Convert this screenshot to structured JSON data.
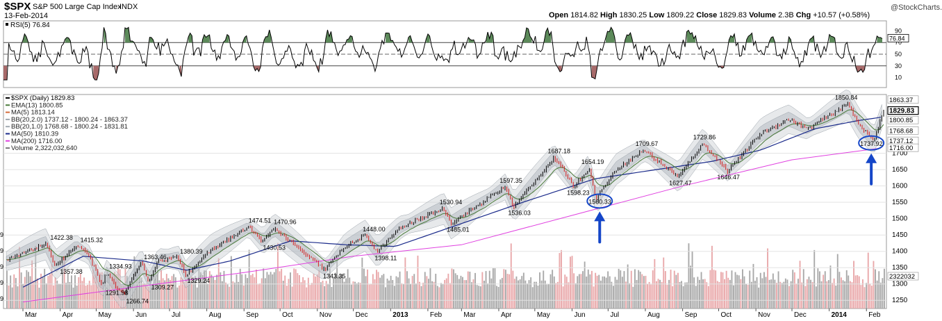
{
  "header": {
    "symbol": "$SPX",
    "name": "S&P 500 Large Cap Index",
    "exchange": "INDX",
    "date": "13-Feb-2014",
    "open_label": "Open",
    "open": "1814.82",
    "high_label": "High",
    "high": "1830.25",
    "low_label": "Low",
    "low": "1809.22",
    "close_label": "Close",
    "close": "1829.83",
    "volume_label": "Volume",
    "volume": "2.3B",
    "chg_label": "Chg",
    "chg": "+10.57 (+0.58%)",
    "watermark": "@StockCharts.com",
    "arrow_glyph": "▾"
  },
  "colors": {
    "price_up": "#000000",
    "price_down": "#d42020",
    "ema13": "#4a7a3a",
    "ma50": "#1a2a8a",
    "ma200": "#e040e0",
    "bb_fill": "#b8bfc6",
    "volume_grey": "#a9a9a9",
    "volume_red": "#e9a8aa",
    "rsi_fill_high": "#5c8a5a",
    "rsi_fill_low": "#a86a6a",
    "annotation": "#1546c8"
  },
  "chart_data": [
    {
      "type": "line",
      "title": "RSI(5) 76.84",
      "legend_label": "RSI(5)",
      "legend_value": "76.84",
      "ylim": [
        0,
        100
      ],
      "ticks": [
        {
          "v": 90,
          "label": "90"
        },
        {
          "v": 70,
          "label": "70"
        },
        {
          "v": 50,
          "label": "50"
        },
        {
          "v": 30,
          "label": "30"
        },
        {
          "v": 10,
          "label": "10"
        }
      ],
      "overbought": 70,
      "oversold": 30,
      "current_label": "76.84"
    },
    {
      "type": "line",
      "title": "$SPX (Daily) 1829.83",
      "ylim": [
        1225,
        1880
      ],
      "x_start": "2012-03-01",
      "x_end": "2014-02-13",
      "legend": [
        {
          "label": "$SPX (Daily) 1829.83",
          "color": "#000000"
        },
        {
          "label": "EMA(13) 1800.85",
          "color": "#4a7a3a"
        },
        {
          "label": "MA(5) 1813.14",
          "color": "#d46a3a"
        },
        {
          "label": "BB(20,2.0) 1737.12 - 1800.24 - 1863.37",
          "color": "#a0a8b0"
        },
        {
          "label": "BB(20,1.0) 1768.68 - 1800.24 - 1831.81",
          "color": "#a0a8b0"
        },
        {
          "label": "MA(50) 1810.39",
          "color": "#1a2a8a"
        },
        {
          "label": "MA(200) 1716.00",
          "color": "#e040e0"
        },
        {
          "label": "Volume 2,322,032,640",
          "color": "#777777"
        }
      ],
      "price_points": [
        {
          "date": "2012-03-01",
          "value": 1370
        },
        {
          "date": "2012-03-15",
          "value": 1395
        },
        {
          "date": "2012-04-02",
          "value": 1422.38
        },
        {
          "date": "2012-04-10",
          "value": 1357.38
        },
        {
          "date": "2012-04-27",
          "value": 1415.32
        },
        {
          "date": "2012-05-07",
          "value": 1390
        },
        {
          "date": "2012-05-18",
          "value": 1291.98
        },
        {
          "date": "2012-05-21",
          "value": 1334.93
        },
        {
          "date": "2012-06-04",
          "value": 1266.74
        },
        {
          "date": "2012-06-19",
          "value": 1363.46
        },
        {
          "date": "2012-06-25",
          "value": 1309.27
        },
        {
          "date": "2012-07-03",
          "value": 1374
        },
        {
          "date": "2012-07-19",
          "value": 1380.39
        },
        {
          "date": "2012-07-25",
          "value": 1329.24
        },
        {
          "date": "2012-08-15",
          "value": 1405
        },
        {
          "date": "2012-09-14",
          "value": 1474.51
        },
        {
          "date": "2012-09-26",
          "value": 1430.53
        },
        {
          "date": "2012-10-05",
          "value": 1470.96
        },
        {
          "date": "2012-10-25",
          "value": 1408
        },
        {
          "date": "2012-11-15",
          "value": 1343.35
        },
        {
          "date": "2012-12-01",
          "value": 1412
        },
        {
          "date": "2012-12-18",
          "value": 1448.0
        },
        {
          "date": "2012-12-28",
          "value": 1398.11
        },
        {
          "date": "2013-01-15",
          "value": 1472
        },
        {
          "date": "2013-02-20",
          "value": 1530.94
        },
        {
          "date": "2013-02-26",
          "value": 1485.01
        },
        {
          "date": "2013-04-11",
          "value": 1597.35
        },
        {
          "date": "2013-04-18",
          "value": 1536.03
        },
        {
          "date": "2013-05-21",
          "value": 1687.18
        },
        {
          "date": "2013-06-06",
          "value": 1598.23
        },
        {
          "date": "2013-06-18",
          "value": 1654.19
        },
        {
          "date": "2013-06-24",
          "value": 1560.33
        },
        {
          "date": "2013-07-10",
          "value": 1650
        },
        {
          "date": "2013-08-02",
          "value": 1709.67
        },
        {
          "date": "2013-08-30",
          "value": 1627.47
        },
        {
          "date": "2013-09-19",
          "value": 1729.86
        },
        {
          "date": "2013-10-09",
          "value": 1646.47
        },
        {
          "date": "2013-11-05",
          "value": 1760
        },
        {
          "date": "2013-11-28",
          "value": 1805
        },
        {
          "date": "2013-12-13",
          "value": 1775
        },
        {
          "date": "2014-01-15",
          "value": 1850.84
        },
        {
          "date": "2014-01-24",
          "value": 1790
        },
        {
          "date": "2014-02-05",
          "value": 1737.92
        },
        {
          "date": "2014-02-13",
          "value": 1829.83
        }
      ],
      "ma50_points": [
        {
          "date": "2012-03-01",
          "value": 1290
        },
        {
          "date": "2012-04-20",
          "value": 1385
        },
        {
          "date": "2012-06-10",
          "value": 1370
        },
        {
          "date": "2012-07-15",
          "value": 1342
        },
        {
          "date": "2012-08-20",
          "value": 1370
        },
        {
          "date": "2012-10-10",
          "value": 1432
        },
        {
          "date": "2012-11-25",
          "value": 1420
        },
        {
          "date": "2013-01-05",
          "value": 1415
        },
        {
          "date": "2013-03-01",
          "value": 1485
        },
        {
          "date": "2013-04-25",
          "value": 1555
        },
        {
          "date": "2013-06-20",
          "value": 1622
        },
        {
          "date": "2013-08-10",
          "value": 1650
        },
        {
          "date": "2013-09-25",
          "value": 1675
        },
        {
          "date": "2013-11-05",
          "value": 1710
        },
        {
          "date": "2013-12-20",
          "value": 1775
        },
        {
          "date": "2014-01-25",
          "value": 1800
        },
        {
          "date": "2014-02-13",
          "value": 1810.39
        }
      ],
      "ma200_points": [
        {
          "date": "2012-03-01",
          "value": 1245
        },
        {
          "date": "2012-06-01",
          "value": 1290
        },
        {
          "date": "2012-09-01",
          "value": 1335
        },
        {
          "date": "2012-12-01",
          "value": 1385
        },
        {
          "date": "2013-03-01",
          "value": 1420
        },
        {
          "date": "2013-06-01",
          "value": 1510
        },
        {
          "date": "2013-09-01",
          "value": 1600
        },
        {
          "date": "2013-12-01",
          "value": 1680
        },
        {
          "date": "2014-02-13",
          "value": 1716.0
        }
      ],
      "annotations": [
        {
          "date": "2012-04-02",
          "value": 1422.38,
          "label": "1422.38",
          "pos": "above"
        },
        {
          "date": "2012-04-10",
          "value": 1357.38,
          "label": "1357.38",
          "pos": "below"
        },
        {
          "date": "2012-04-27",
          "value": 1415.32,
          "label": "1415.32",
          "pos": "above"
        },
        {
          "date": "2012-05-21",
          "value": 1334.93,
          "label": "1334.93",
          "pos": "above"
        },
        {
          "date": "2012-05-18",
          "value": 1291.98,
          "label": "1291.98",
          "pos": "below"
        },
        {
          "date": "2012-06-04",
          "value": 1266.74,
          "label": "1266.74",
          "pos": "below"
        },
        {
          "date": "2012-06-19",
          "value": 1363.46,
          "label": "1363.46",
          "pos": "above"
        },
        {
          "date": "2012-06-25",
          "value": 1309.27,
          "label": "1309.27",
          "pos": "below"
        },
        {
          "date": "2012-07-19",
          "value": 1380.39,
          "label": "1380.39",
          "pos": "above"
        },
        {
          "date": "2012-07-25",
          "value": 1329.24,
          "label": "1329.24",
          "pos": "below"
        },
        {
          "date": "2012-09-14",
          "value": 1474.51,
          "label": "1474.51",
          "pos": "above"
        },
        {
          "date": "2012-10-05",
          "value": 1470.96,
          "label": "1470.96",
          "pos": "above"
        },
        {
          "date": "2012-09-26",
          "value": 1430.53,
          "label": "1430.53",
          "pos": "below"
        },
        {
          "date": "2012-11-15",
          "value": 1343.35,
          "label": "1343.35",
          "pos": "below"
        },
        {
          "date": "2012-12-18",
          "value": 1448.0,
          "label": "1448.00",
          "pos": "above"
        },
        {
          "date": "2012-12-28",
          "value": 1398.11,
          "label": "1398.11",
          "pos": "below"
        },
        {
          "date": "2013-02-20",
          "value": 1530.94,
          "label": "1530.94",
          "pos": "above"
        },
        {
          "date": "2013-02-26",
          "value": 1485.01,
          "label": "1485.01",
          "pos": "below"
        },
        {
          "date": "2013-04-11",
          "value": 1597.35,
          "label": "1597.35",
          "pos": "above"
        },
        {
          "date": "2013-04-18",
          "value": 1536.03,
          "label": "1536.03",
          "pos": "below"
        },
        {
          "date": "2013-05-21",
          "value": 1687.18,
          "label": "1687.18",
          "pos": "above"
        },
        {
          "date": "2013-06-18",
          "value": 1654.19,
          "label": "1654.19",
          "pos": "above"
        },
        {
          "date": "2013-06-06",
          "value": 1598.23,
          "label": "1598.23",
          "pos": "below"
        },
        {
          "date": "2013-06-24",
          "value": 1560.33,
          "label": "1560.33",
          "pos": "circle"
        },
        {
          "date": "2013-08-02",
          "value": 1709.67,
          "label": "1709.67",
          "pos": "above"
        },
        {
          "date": "2013-08-30",
          "value": 1627.47,
          "label": "1627.47",
          "pos": "below"
        },
        {
          "date": "2013-09-19",
          "value": 1729.86,
          "label": "1729.86",
          "pos": "above"
        },
        {
          "date": "2013-10-09",
          "value": 1646.47,
          "label": "1646.47",
          "pos": "below"
        },
        {
          "date": "2014-01-15",
          "value": 1850.84,
          "label": "1850.84",
          "pos": "above"
        },
        {
          "date": "2014-02-05",
          "value": 1737.92,
          "label": "1737.92",
          "pos": "circle"
        }
      ],
      "y_ticks": [
        {
          "v": 1700,
          "label": "1700"
        },
        {
          "v": 1650,
          "label": "1650"
        },
        {
          "v": 1600,
          "label": "1600"
        },
        {
          "v": 1550,
          "label": "1550"
        },
        {
          "v": 1500,
          "label": "1500"
        },
        {
          "v": 1450,
          "label": "1450"
        },
        {
          "v": 1400,
          "label": "1400"
        },
        {
          "v": 1350,
          "label": "1350"
        },
        {
          "v": 1300,
          "label": "1300"
        },
        {
          "v": 1250,
          "label": "1250"
        }
      ],
      "right_value_labels": [
        {
          "v": 1863.37,
          "label": "1863.37",
          "bold": false
        },
        {
          "v": 1829.83,
          "label": "1829.83",
          "bold": true
        },
        {
          "v": 1800.85,
          "label": "1800.85",
          "bold": false
        },
        {
          "v": 1768.68,
          "label": "1768.68",
          "bold": false
        },
        {
          "v": 1737.12,
          "label": "1737.12",
          "bold": false
        },
        {
          "v": 1716.0,
          "label": "1716.00",
          "bold": false
        }
      ],
      "volume_label": "2322032",
      "volume_value": 2322032640,
      "left_edge_labels": [
        "9",
        "9",
        "9",
        "9",
        "9"
      ],
      "x_ticks": [
        {
          "date": "2012-03-01",
          "label": "Mar",
          "bold": false
        },
        {
          "date": "2012-04-01",
          "label": "Apr",
          "bold": false
        },
        {
          "date": "2012-05-01",
          "label": "May",
          "bold": false
        },
        {
          "date": "2012-06-01",
          "label": "Jun",
          "bold": false
        },
        {
          "date": "2012-07-01",
          "label": "Jul",
          "bold": false
        },
        {
          "date": "2012-08-01",
          "label": "Aug",
          "bold": false
        },
        {
          "date": "2012-09-01",
          "label": "Sep",
          "bold": false
        },
        {
          "date": "2012-10-01",
          "label": "Oct",
          "bold": false
        },
        {
          "date": "2012-11-01",
          "label": "Nov",
          "bold": false
        },
        {
          "date": "2012-12-01",
          "label": "Dec",
          "bold": false
        },
        {
          "date": "2013-01-01",
          "label": "2013",
          "bold": true
        },
        {
          "date": "2013-02-01",
          "label": "Feb",
          "bold": false
        },
        {
          "date": "2013-03-01",
          "label": "Mar",
          "bold": false
        },
        {
          "date": "2013-04-01",
          "label": "Apr",
          "bold": false
        },
        {
          "date": "2013-05-01",
          "label": "May",
          "bold": false
        },
        {
          "date": "2013-06-01",
          "label": "Jun",
          "bold": false
        },
        {
          "date": "2013-07-01",
          "label": "Jul",
          "bold": false
        },
        {
          "date": "2013-08-01",
          "label": "Aug",
          "bold": false
        },
        {
          "date": "2013-09-01",
          "label": "Sep",
          "bold": false
        },
        {
          "date": "2013-10-01",
          "label": "Oct",
          "bold": false
        },
        {
          "date": "2013-11-01",
          "label": "Nov",
          "bold": false
        },
        {
          "date": "2013-12-01",
          "label": "Dec",
          "bold": false
        },
        {
          "date": "2014-01-01",
          "label": "2014",
          "bold": true
        },
        {
          "date": "2014-02-01",
          "label": "Feb",
          "bold": false
        }
      ]
    }
  ]
}
